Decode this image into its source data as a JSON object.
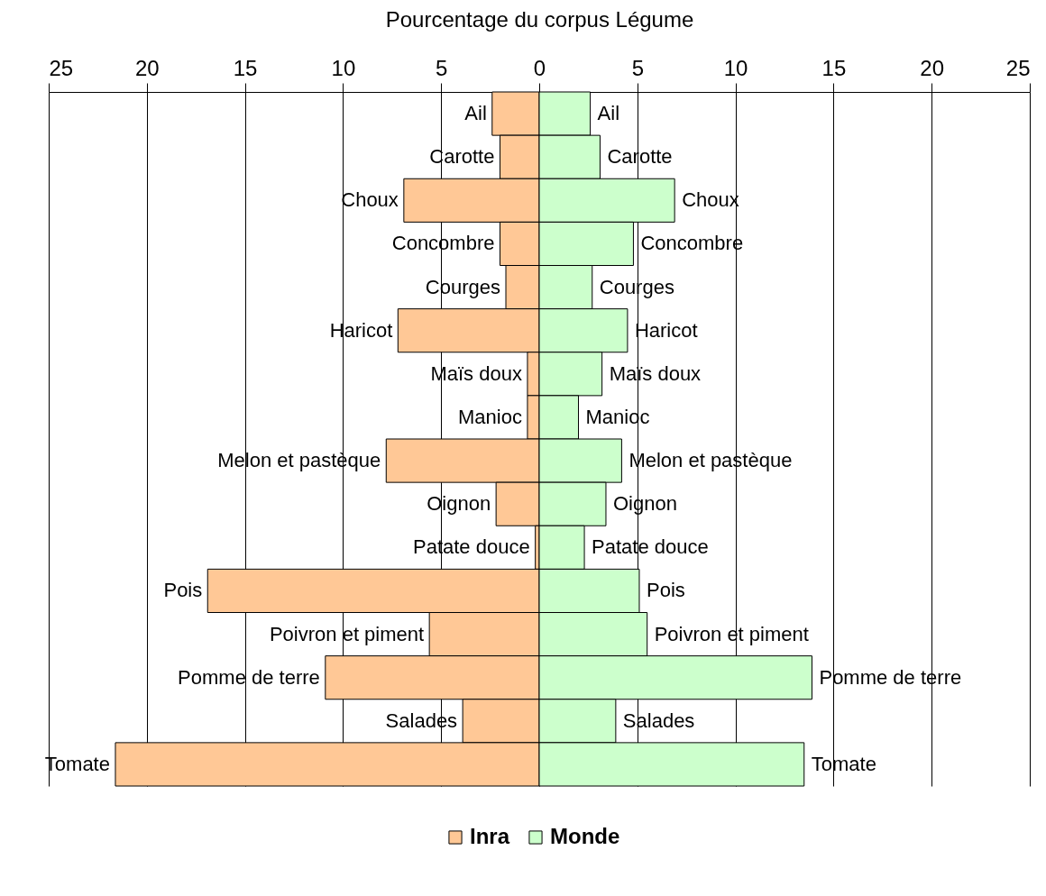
{
  "chart_data": {
    "type": "bar",
    "orientation": "horizontal",
    "xlabel": "Pourcentage du corpus Légume",
    "categories": [
      "Ail",
      "Carotte",
      "Choux",
      "Concombre",
      "Courges",
      "Haricot",
      "Maïs doux",
      "Manioc",
      "Melon et pastèque",
      "Oignon",
      "Patate douce",
      "Pois",
      "Poivron et piment",
      "Pomme de terre",
      "Salades",
      "Tomate"
    ],
    "series": [
      {
        "name": "Inra",
        "color": "#ffc896",
        "values": [
          -2.4,
          -2.0,
          -6.9,
          -2.0,
          -1.7,
          -7.2,
          -0.6,
          -0.6,
          -7.8,
          -2.2,
          -0.2,
          -16.9,
          -5.6,
          -10.9,
          -3.9,
          -21.6
        ]
      },
      {
        "name": "Monde",
        "color": "#ccffcc",
        "values": [
          2.6,
          3.1,
          6.9,
          4.8,
          2.7,
          4.5,
          3.2,
          2.0,
          4.2,
          3.4,
          2.3,
          5.1,
          5.5,
          13.9,
          3.9,
          13.5
        ]
      }
    ],
    "xlim": [
      -25,
      25
    ],
    "xticks": [
      {
        "value": -25,
        "label": "25"
      },
      {
        "value": -20,
        "label": "20"
      },
      {
        "value": -15,
        "label": "15"
      },
      {
        "value": -10,
        "label": "10"
      },
      {
        "value": -5,
        "label": "5"
      },
      0,
      5,
      10,
      15,
      20,
      25
    ],
    "grid": "x",
    "legend": "bottom",
    "stacked": true
  }
}
